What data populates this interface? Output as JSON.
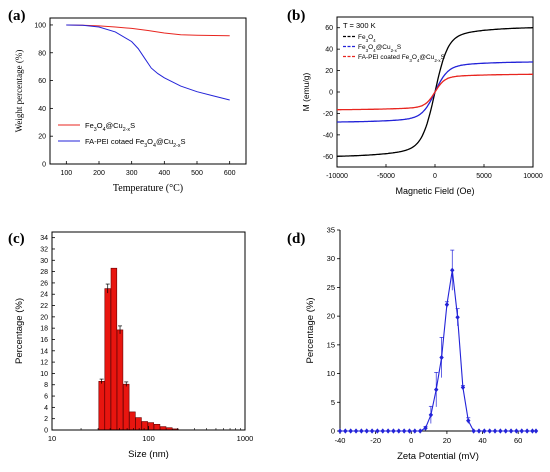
{
  "colors": {
    "red": "#e8251f",
    "blue": "#2323d8",
    "black": "#000000",
    "bar": "#e8150f"
  },
  "chart_data": [
    {
      "id": "a",
      "type": "line",
      "panel_label": "(a)",
      "xlabel": "Temperature (°C)",
      "ylabel": "Weight percentage (%)",
      "xlim": [
        50,
        650
      ],
      "ylim": [
        0,
        105
      ],
      "xticks": [
        100,
        200,
        300,
        400,
        500,
        600
      ],
      "yticks": [
        0,
        20,
        40,
        60,
        80,
        100
      ],
      "legend_position": "lower-left",
      "series": [
        {
          "name": "Fe3O4@Cu2-xS",
          "label_parts": [
            [
              "Fe",
              "n"
            ],
            [
              "3",
              "sub"
            ],
            [
              "O",
              "n"
            ],
            [
              "4",
              "sub"
            ],
            [
              "@Cu",
              "n"
            ],
            [
              "2-x",
              "sub"
            ],
            [
              "S",
              "n"
            ]
          ],
          "color": "#e8251f",
          "x": [
            100,
            150,
            200,
            250,
            300,
            350,
            400,
            450,
            500,
            550,
            600
          ],
          "y": [
            100,
            99.8,
            99.3,
            98.5,
            97.5,
            96.0,
            94.2,
            93.0,
            92.6,
            92.4,
            92.3
          ]
        },
        {
          "name": "FA-PEI cotaed Fe3O4@Cu2-xS",
          "label_parts": [
            [
              "FA-PEI cotaed Fe",
              "n"
            ],
            [
              "3",
              "sub"
            ],
            [
              "O",
              "n"
            ],
            [
              "4",
              "sub"
            ],
            [
              "@Cu",
              "n"
            ],
            [
              "2-x",
              "sub"
            ],
            [
              "S",
              "n"
            ]
          ],
          "color": "#2323d8",
          "x": [
            100,
            150,
            200,
            250,
            300,
            320,
            340,
            360,
            380,
            400,
            450,
            500,
            550,
            600
          ],
          "y": [
            100,
            99.8,
            98.5,
            95.0,
            88.0,
            83.0,
            76.0,
            69.0,
            65.0,
            62.0,
            56.0,
            52.0,
            49.0,
            46.0
          ]
        }
      ]
    },
    {
      "id": "b",
      "type": "line",
      "panel_label": "(b)",
      "xlabel": "Magnetic Field (Oe)",
      "ylabel": "M (emu/g)",
      "annotation": "T = 300 K",
      "xlim": [
        -10000,
        10000
      ],
      "ylim": [
        -70,
        70
      ],
      "xticks": [
        -10000,
        -5000,
        0,
        5000,
        10000
      ],
      "yticks": [
        -60,
        -40,
        -20,
        0,
        20,
        40,
        60
      ],
      "legend_position": "top-left",
      "series": [
        {
          "name": "Fe3O4",
          "label_parts": [
            [
              "Fe",
              "n"
            ],
            [
              "3",
              "sub"
            ],
            [
              "O",
              "n"
            ],
            [
              "4",
              "sub"
            ]
          ],
          "color": "#000000",
          "ms": 60,
          "h0": 650
        },
        {
          "name": "Fe3O4@Cu2-xS",
          "label_parts": [
            [
              "Fe",
              "n"
            ],
            [
              "3",
              "sub"
            ],
            [
              "O",
              "n"
            ],
            [
              "4",
              "sub"
            ],
            [
              "@Cu",
              "n"
            ],
            [
              "2-x",
              "sub"
            ],
            [
              "S",
              "n"
            ]
          ],
          "color": "#2323d8",
          "ms": 28,
          "h0": 650
        },
        {
          "name": "FA-PEI coated Fe3O4@Cu2-xS",
          "label_parts": [
            [
              "FA-PEI coated Fe",
              "n"
            ],
            [
              "3",
              "sub"
            ],
            [
              "O",
              "n"
            ],
            [
              "4",
              "sub"
            ],
            [
              "@Cu",
              "n"
            ],
            [
              "2-x",
              "sub"
            ],
            [
              "S",
              "n"
            ]
          ],
          "color": "#e8251f",
          "ms": 16.5,
          "h0": 500
        }
      ]
    },
    {
      "id": "c",
      "type": "bar",
      "panel_label": "(c)",
      "xlabel": "Size (nm)",
      "ylabel": "Percentage (%)",
      "xscale": "log",
      "xlim": [
        10,
        1000
      ],
      "ylim": [
        0,
        35
      ],
      "xticks": [
        10,
        100,
        1000
      ],
      "yticks": [
        0,
        2,
        4,
        6,
        8,
        10,
        12,
        14,
        16,
        18,
        20,
        22,
        24,
        26,
        28,
        30,
        32,
        34
      ],
      "bar_width_log": 0.06,
      "x": [
        32.7,
        37.8,
        43.8,
        50.7,
        58.8,
        68.1,
        78.8,
        91.3,
        105.7,
        122.4,
        141.8,
        164.2,
        190.1
      ],
      "values": [
        8.6,
        25.0,
        28.6,
        17.7,
        8.1,
        3.2,
        2.2,
        1.5,
        1.3,
        1.0,
        0.6,
        0.4,
        0.2
      ],
      "errors": [
        0.4,
        0.8,
        0,
        0.7,
        0.4,
        0,
        0,
        0,
        0,
        0,
        0,
        0,
        0
      ]
    },
    {
      "id": "d",
      "type": "line",
      "panel_label": "(d)",
      "xlabel": "Zeta Potential (mV)",
      "ylabel": "Percentage (%)",
      "xlim": [
        -40,
        70
      ],
      "ylim": [
        0,
        35
      ],
      "xticks": [
        -40,
        -20,
        0,
        20,
        40,
        60
      ],
      "yticks": [
        0,
        5,
        10,
        15,
        20,
        25,
        30,
        35
      ],
      "series": [
        {
          "name": "",
          "color": "#2323d8",
          "x": [
            -40,
            -37,
            -34,
            -31,
            -28,
            -25,
            -22,
            -19,
            -16,
            -13,
            -10,
            -7,
            -4,
            -1,
            2,
            5,
            8,
            11,
            14,
            17,
            20,
            23,
            26,
            29,
            32,
            35,
            38,
            41,
            44,
            47,
            50,
            53,
            56,
            59,
            62,
            65,
            68,
            70
          ],
          "y": [
            0,
            0,
            0,
            0,
            0,
            0,
            0,
            0,
            0,
            0,
            0,
            0,
            0,
            0,
            0,
            0,
            0.5,
            2.8,
            7.2,
            12.8,
            22.0,
            28.0,
            19.8,
            7.6,
            1.8,
            0,
            0,
            0,
            0,
            0,
            0,
            0,
            0,
            0,
            0,
            0,
            0,
            0
          ],
          "errors": [
            0,
            0,
            0,
            0,
            0,
            0,
            0,
            0,
            0,
            0,
            0,
            0,
            0,
            0,
            0,
            0,
            0.3,
            1.5,
            3.0,
            3.5,
            0.5,
            3.5,
            1.5,
            0.3,
            0.5,
            0,
            0,
            0,
            0,
            0,
            0,
            0,
            0,
            0,
            0,
            0,
            0,
            0
          ]
        }
      ]
    }
  ]
}
